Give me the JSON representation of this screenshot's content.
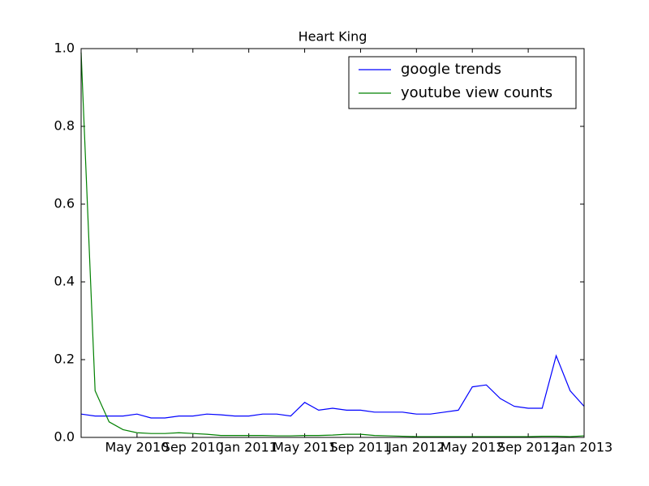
{
  "chart_data": {
    "type": "line",
    "title": "Heart King",
    "x": [
      "2010-01",
      "2010-02",
      "2010-03",
      "2010-04",
      "2010-05",
      "2010-06",
      "2010-07",
      "2010-08",
      "2010-09",
      "2010-10",
      "2010-11",
      "2010-12",
      "2011-01",
      "2011-02",
      "2011-03",
      "2011-04",
      "2011-05",
      "2011-06",
      "2011-07",
      "2011-08",
      "2011-09",
      "2011-10",
      "2011-11",
      "2011-12",
      "2012-01",
      "2012-02",
      "2012-03",
      "2012-04",
      "2012-05",
      "2012-06",
      "2012-07",
      "2012-08",
      "2012-09",
      "2012-10",
      "2012-11",
      "2012-12",
      "2013-01"
    ],
    "series": [
      {
        "name": "google trends",
        "color": "#0000ff",
        "values": [
          0.06,
          0.055,
          0.055,
          0.055,
          0.06,
          0.05,
          0.05,
          0.055,
          0.055,
          0.06,
          0.058,
          0.055,
          0.055,
          0.06,
          0.06,
          0.055,
          0.09,
          0.07,
          0.075,
          0.07,
          0.07,
          0.065,
          0.065,
          0.065,
          0.06,
          0.06,
          0.065,
          0.07,
          0.13,
          0.135,
          0.1,
          0.08,
          0.075,
          0.075,
          0.21,
          0.12,
          0.08
        ]
      },
      {
        "name": "youtube view counts",
        "color": "#008000",
        "values": [
          0.99,
          0.12,
          0.04,
          0.02,
          0.012,
          0.01,
          0.01,
          0.012,
          0.01,
          0.008,
          0.005,
          0.005,
          0.005,
          0.005,
          0.004,
          0.004,
          0.005,
          0.005,
          0.006,
          0.008,
          0.008,
          0.005,
          0.004,
          0.003,
          0.002,
          0.002,
          0.002,
          0.002,
          0.002,
          0.002,
          0.002,
          0.002,
          0.002,
          0.003,
          0.003,
          0.002,
          0.004
        ]
      }
    ],
    "xlim": [
      "2010-01",
      "2013-01"
    ],
    "xticks": [
      {
        "value": "2010-05",
        "label": "May 2010"
      },
      {
        "value": "2010-09",
        "label": "Sep 2010"
      },
      {
        "value": "2011-01",
        "label": "Jan 2011"
      },
      {
        "value": "2011-05",
        "label": "May 2011"
      },
      {
        "value": "2011-09",
        "label": "Sep 2011"
      },
      {
        "value": "2012-01",
        "label": "Jan 2012"
      },
      {
        "value": "2012-05",
        "label": "May 2012"
      },
      {
        "value": "2012-09",
        "label": "Sep 2012"
      },
      {
        "value": "2013-01",
        "label": "Jan 2013"
      }
    ],
    "ylim": [
      0,
      1
    ],
    "yticks": [
      {
        "value": 0,
        "label": "0.0"
      },
      0.2,
      0.4,
      0.6,
      0.8,
      {
        "value": 1,
        "label": "1.0"
      }
    ],
    "legend": "upper right"
  }
}
